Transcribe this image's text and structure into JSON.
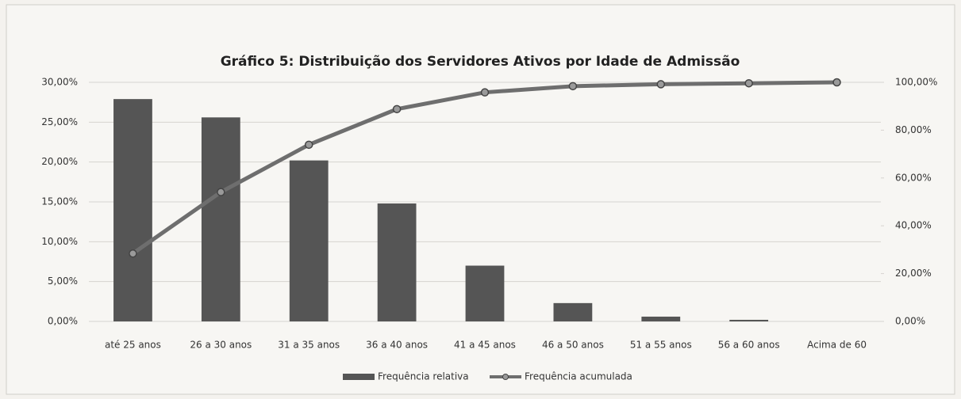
{
  "chart_data": {
    "type": "bar-line",
    "title": "Gráfico 5: Distribuição dos Servidores Ativos por Idade de Admissão",
    "categories": [
      "até 25 anos",
      "26 a 30 anos",
      "31 a 35 anos",
      "36 a 40 anos",
      "41 a 45 anos",
      "46 a 50 anos",
      "51 a 55 anos",
      "56 a 60 anos",
      "Acima de 60"
    ],
    "series": [
      {
        "name": "Frequência relativa",
        "type": "bar",
        "color": "#555555",
        "values": [
          27.9,
          25.6,
          20.2,
          14.8,
          7.0,
          2.3,
          0.6,
          0.2,
          0
        ]
      },
      {
        "name": "Frequência acumulada",
        "type": "line",
        "axis": "y2",
        "color": "#6e6e6e",
        "values": [
          28.4,
          54.1,
          73.9,
          88.8,
          95.8,
          98.4,
          99.2,
          99.6,
          100
        ]
      }
    ],
    "ylim": [
      0,
      30
    ],
    "yticks": [
      {
        "value": 0,
        "label": "0,00%"
      },
      {
        "value": 5,
        "label": "5,00%"
      },
      {
        "value": 10,
        "label": "10,00%"
      },
      {
        "value": 15,
        "label": "15,00%"
      },
      {
        "value": 20,
        "label": "20,00%"
      },
      {
        "value": 25,
        "label": "25,00%"
      },
      {
        "value": 30,
        "label": "30,00%"
      }
    ],
    "y2lim": [
      0,
      100
    ],
    "y2ticks": [
      {
        "value": 0,
        "label": "0,00%"
      },
      {
        "value": 20,
        "label": "20,00%"
      },
      {
        "value": 40,
        "label": "40,00%"
      },
      {
        "value": 60,
        "label": "60,00%"
      },
      {
        "value": 80,
        "label": "80,00%"
      },
      {
        "value": 100,
        "label": "100,00%"
      }
    ],
    "grid": true,
    "legend": "bottom"
  }
}
